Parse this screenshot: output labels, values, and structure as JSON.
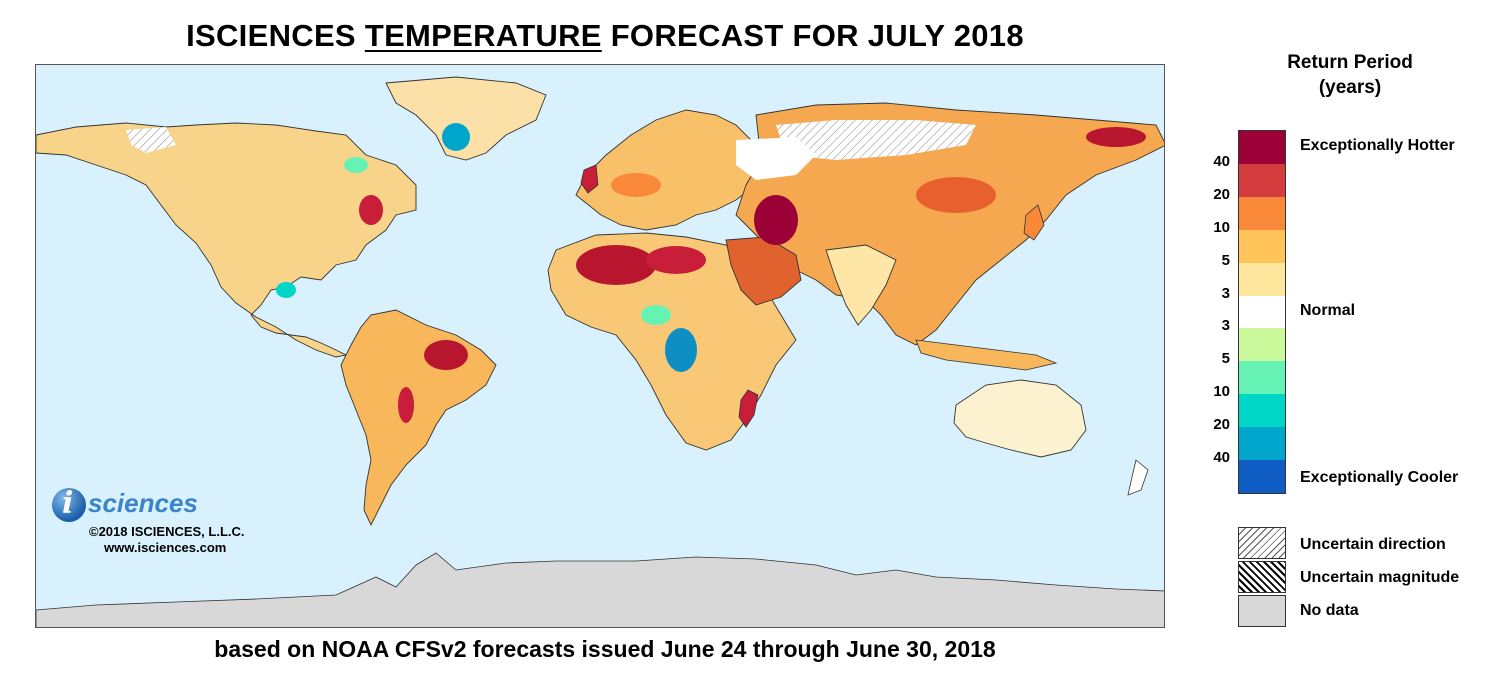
{
  "header": {
    "title_prefix": "ISCIENCES  ",
    "title_underlined": "TEMPERATURE",
    "title_suffix": " FORECAST FOR JULY 2018"
  },
  "footer": {
    "subtitle": "based on NOAA CFSv2 forecasts issued June 24 through June 30, 2018"
  },
  "logo": {
    "letter": "i",
    "word": "sciences",
    "copyright": "©2018 ISCIENCES, L.L.C.",
    "url": "www.isciences.com"
  },
  "legend": {
    "title_line1": "Return Period",
    "title_line2": "(years)",
    "bands": [
      {
        "color": "#9b0037"
      },
      {
        "color": "#d43d3d"
      },
      {
        "color": "#f98839"
      },
      {
        "color": "#ffc35a"
      },
      {
        "color": "#ffe79e"
      },
      {
        "color": "#ffffff"
      },
      {
        "color": "#c9f99a"
      },
      {
        "color": "#66f2b4"
      },
      {
        "color": "#00d6c6"
      },
      {
        "color": "#00a5cc"
      },
      {
        "color": "#0e5cc4"
      }
    ],
    "ticks": [
      "40",
      "20",
      "10",
      "5",
      "3",
      "3",
      "5",
      "10",
      "20",
      "40"
    ],
    "label_hot": "Exceptionally Hotter",
    "label_normal": "Normal",
    "label_cool": "Exceptionally Cooler",
    "label_uncertain_direction": "Uncertain direction",
    "label_uncertain_magnitude": "Uncertain magnitude",
    "label_no_data": "No data"
  },
  "map": {
    "ocean_color": "#d9f1fc",
    "nodata_color": "#d8d8d8",
    "border_color": "#333333"
  }
}
